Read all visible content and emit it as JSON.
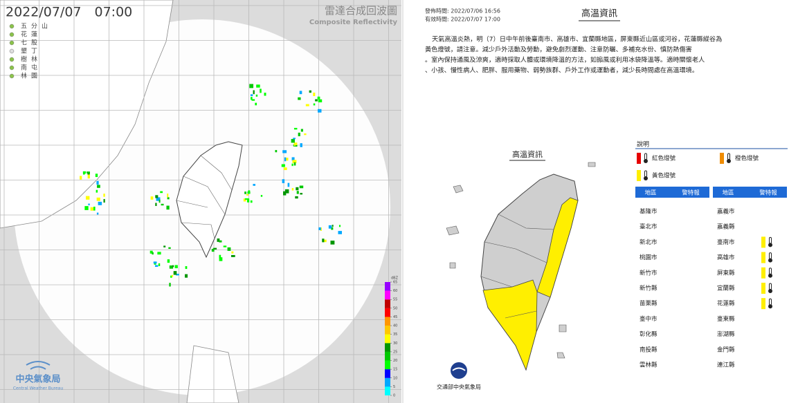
{
  "radar": {
    "timestamp": "2022/07/07　07:00",
    "stations": [
      "五分山",
      "花蓮",
      "七股",
      "墾丁",
      "樹林",
      "南屯",
      "林園"
    ],
    "title": "雷達合成回波圖",
    "subtitle": "Composite Reflectivity",
    "colorbar": {
      "unit": "dBZ",
      "ticks": [
        0,
        5,
        10,
        15,
        20,
        25,
        30,
        35,
        40,
        45,
        50,
        55,
        60,
        65
      ],
      "colors": [
        "#00ffff",
        "#00a8ff",
        "#0000ff",
        "#00ff00",
        "#00c800",
        "#009600",
        "#ffff00",
        "#ffc800",
        "#ff9600",
        "#ff0000",
        "#c00000",
        "#ff00ff",
        "#9600ff"
      ]
    },
    "agency": "中央氣象局",
    "agency_en": "Central Weather Bureau"
  },
  "heat": {
    "issued": "發佈時間: 2022/07/06 16:56",
    "valid": "有效時間: 2022/07/07 17:00",
    "title": "高溫資訊",
    "text_lines": [
      "天氣高溫炎熱，明（7）日中午前後臺南市、高雄市、宜蘭縣地區，屏東縣近山區或河谷，花蓮縣縱谷為",
      "黃色燈號，請注意。減少戶外活動及勞動，避免劇烈運動、注意防曬、多補充水份、慎防熱傷害",
      "。室內保持通風及涼爽，適時採取人體或環境降溫的方法，如搧風或利用冰袋降溫等。適時關懷老人",
      "、小孩、慢性病人、肥胖、服用藥物、弱勢族群、戶外工作或運動者，減少長時間處在高溫環境。"
    ],
    "map_title": "高溫資訊",
    "legend": {
      "title": "說明",
      "items": [
        {
          "label": "紅色燈號",
          "color": "#e60000"
        },
        {
          "label": "橙色燈號",
          "color": "#f08c00"
        },
        {
          "label": "黃色燈號",
          "color": "#ffef00"
        }
      ]
    },
    "table": {
      "headers": [
        "地區",
        "警特報"
      ],
      "columns": [
        [
          {
            "name": "基隆市"
          },
          {
            "name": "臺北市"
          },
          {
            "name": "新北市"
          },
          {
            "name": "桃園市"
          },
          {
            "name": "新竹市"
          },
          {
            "name": "新竹縣"
          },
          {
            "name": "苗栗縣"
          },
          {
            "name": "臺中市"
          },
          {
            "name": "彰化縣"
          },
          {
            "name": "南投縣"
          },
          {
            "name": "雲林縣"
          }
        ],
        [
          {
            "name": "嘉義市"
          },
          {
            "name": "嘉義縣"
          },
          {
            "name": "臺南市",
            "warning": "#ffef00"
          },
          {
            "name": "高雄市",
            "warning": "#ffef00"
          },
          {
            "name": "屏東縣",
            "warning": "#ffef00"
          },
          {
            "name": "宜蘭縣",
            "warning": "#ffef00"
          },
          {
            "name": "花蓮縣",
            "warning": "#ffef00"
          },
          {
            "name": "臺東縣"
          },
          {
            "name": "澎湖縣"
          },
          {
            "name": "金門縣"
          },
          {
            "name": "連江縣"
          }
        ]
      ]
    },
    "footer": "交通部中央氣象局"
  }
}
